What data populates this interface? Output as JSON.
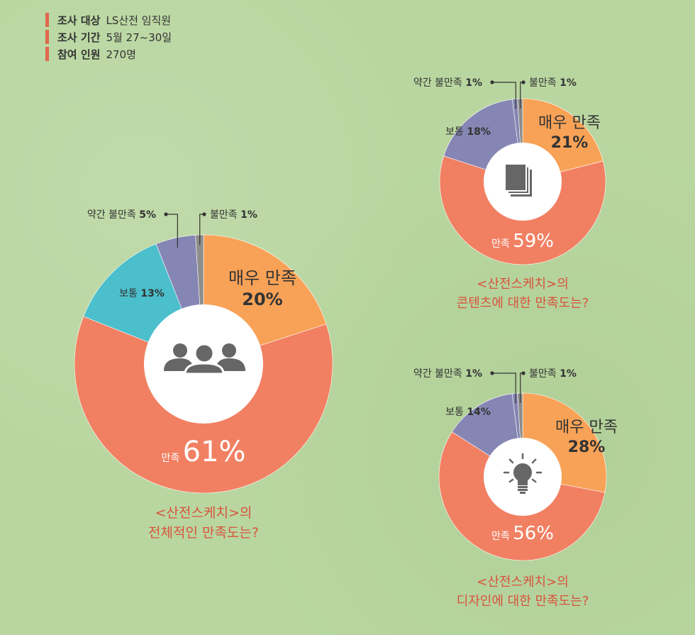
{
  "survey_info": [
    {
      "key": "조사 대상",
      "value": "LS산전 임직원"
    },
    {
      "key": "조사 기간",
      "value": "5월 27~30일"
    },
    {
      "key": "참여 인원",
      "value": "270명"
    }
  ],
  "colors": {
    "very_satisfied": "#f8a257",
    "satisfied": "#f18063",
    "normal_chart1": "#4bbfcb",
    "normal": "#8686b4",
    "slightly_dissatisfied": "#8686b4",
    "dissatisfied": "#8d8d8d",
    "question": "#d9533d",
    "icon": "#666666"
  },
  "chart_data": [
    {
      "type": "pie",
      "icon": "people-icon",
      "question": [
        "<산전스케치>의",
        "전체적인 만족도는?"
      ],
      "slices": [
        {
          "label": "매우 만족",
          "value": 20,
          "value_text": "20%"
        },
        {
          "label": "만족",
          "value": 61,
          "value_text": "61%"
        },
        {
          "label": "보통",
          "value": 13,
          "value_text": "13%"
        },
        {
          "label": "약간 불만족",
          "value": 5,
          "value_text": "5%"
        },
        {
          "label": "불만족",
          "value": 1,
          "value_text": "1%"
        }
      ]
    },
    {
      "type": "pie",
      "icon": "documents-icon",
      "question": [
        "<산전스케치>의",
        "콘텐츠에 대한 만족도는?"
      ],
      "slices": [
        {
          "label": "매우 만족",
          "value": 21,
          "value_text": "21%"
        },
        {
          "label": "만족",
          "value": 59,
          "value_text": "59%"
        },
        {
          "label": "보통",
          "value": 18,
          "value_text": "18%"
        },
        {
          "label": "약간 불만족",
          "value": 1,
          "value_text": "1%"
        },
        {
          "label": "불만족",
          "value": 1,
          "value_text": "1%"
        }
      ]
    },
    {
      "type": "pie",
      "icon": "lightbulb-icon",
      "question": [
        "<산전스케치>의",
        "디자인에 대한 만족도는?"
      ],
      "slices": [
        {
          "label": "매우 만족",
          "value": 28,
          "value_text": "28%"
        },
        {
          "label": "만족",
          "value": 56,
          "value_text": "56%"
        },
        {
          "label": "보통",
          "value": 14,
          "value_text": "14%"
        },
        {
          "label": "약간 불만족",
          "value": 1,
          "value_text": "1%"
        },
        {
          "label": "불만족",
          "value": 1,
          "value_text": "1%"
        }
      ]
    }
  ]
}
